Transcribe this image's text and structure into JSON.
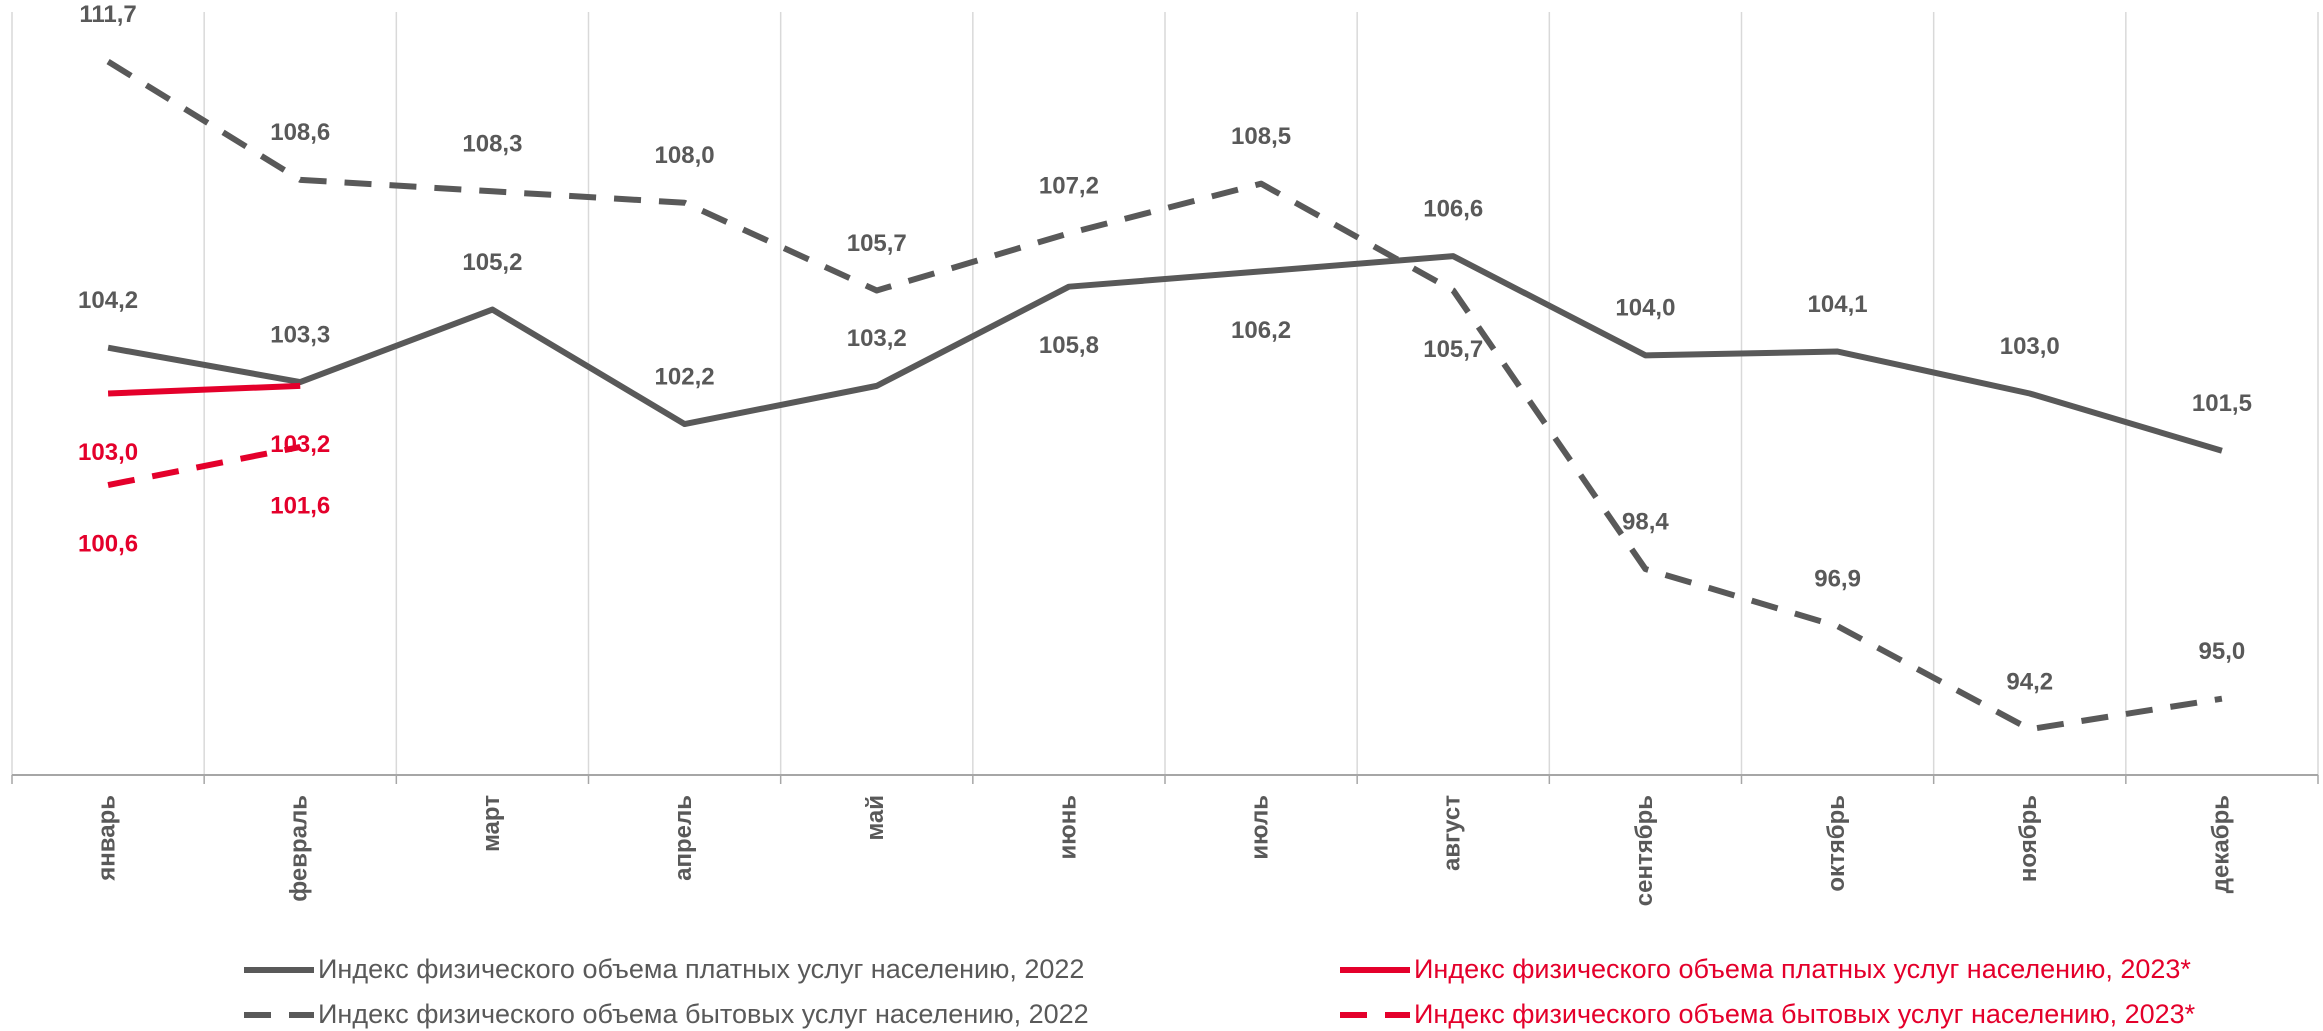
{
  "chart_data": {
    "type": "line",
    "categories": [
      "январь",
      "февраль",
      "март",
      "апрель",
      "май",
      "июнь",
      "июль",
      "август",
      "сентябрь",
      "октябрь",
      "ноябрь",
      "декабрь"
    ],
    "ylim": [
      93,
      113
    ],
    "series": [
      {
        "name": "Индекс физического объема платных услуг населению, 2022",
        "color": "#595959",
        "dash": false,
        "values": [
          104.2,
          103.3,
          105.2,
          102.2,
          103.2,
          105.8,
          106.2,
          106.6,
          104.0,
          104.1,
          103.0,
          101.5
        ],
        "value_labels": [
          "104,2",
          "103,3",
          "105,2",
          "102,2",
          "103,2",
          "105,8",
          "106,2",
          "106,6",
          "104,0",
          "104,1",
          "103,0",
          "101,5"
        ]
      },
      {
        "name": "Индекс физического объема бытовых услуг населению, 2022",
        "color": "#595959",
        "dash": true,
        "values": [
          111.7,
          108.6,
          108.3,
          108.0,
          105.7,
          107.2,
          108.5,
          105.7,
          98.4,
          96.9,
          94.2,
          95.0
        ],
        "value_labels": [
          "111,7",
          "108,6",
          "108,3",
          "108,0",
          "105,7",
          "107,2",
          "108,5",
          "105,7",
          "98,4",
          "96,9",
          "94,2",
          "95,0"
        ]
      },
      {
        "name": "Индекс физического объема платных услуг населению, 2023*",
        "color": "#e4002b",
        "dash": false,
        "values": [
          103.0,
          103.2,
          null,
          null,
          null,
          null,
          null,
          null,
          null,
          null,
          null,
          null
        ],
        "value_labels": [
          "103,0",
          "103,2",
          null,
          null,
          null,
          null,
          null,
          null,
          null,
          null,
          null,
          null
        ]
      },
      {
        "name": "Индекс физического объема бытовых услуг населению, 2023*",
        "color": "#e4002b",
        "dash": true,
        "values": [
          100.6,
          101.6,
          null,
          null,
          null,
          null,
          null,
          null,
          null,
          null,
          null,
          null
        ],
        "value_labels": [
          "100,6",
          "101,6",
          null,
          null,
          null,
          null,
          null,
          null,
          null,
          null,
          null,
          null
        ]
      }
    ]
  }
}
